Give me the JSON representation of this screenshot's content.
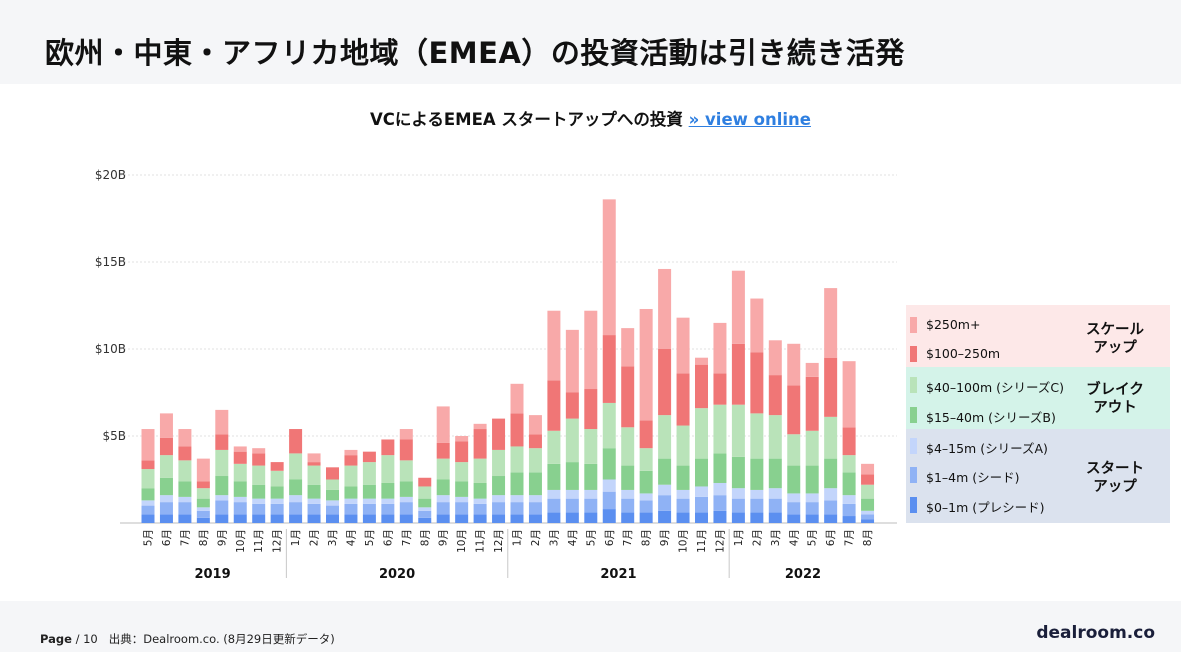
{
  "page": {
    "title": "欧州・中東・アフリカ地域（EMEA）の投資活動は引き続き活発",
    "footer": {
      "page_label": "Page",
      "page_number": "/ 10",
      "source": "出典：Dealroom.co. (8月29日更新データ)",
      "logo": "dealroom.co"
    }
  },
  "chart_data": {
    "type": "bar",
    "title": "VCによるEMEA スタートアップへの投資",
    "title_link": "» view online",
    "stacked": true,
    "ylim": [
      0,
      20
    ],
    "yticks": [
      {
        "value": 5,
        "label": "$5B"
      },
      {
        "value": 10,
        "label": "$10B"
      },
      {
        "value": 15,
        "label": "$15B"
      },
      {
        "value": 20,
        "label": "$20B"
      }
    ],
    "categories": [
      "5月",
      "6月",
      "7月",
      "8月",
      "9月",
      "10月",
      "11月",
      "12月",
      "1月",
      "2月",
      "3月",
      "4月",
      "5月",
      "6月",
      "7月",
      "8月",
      "9月",
      "10月",
      "11月",
      "12月",
      "1月",
      "2月",
      "3月",
      "4月",
      "5月",
      "6月",
      "7月",
      "8月",
      "9月",
      "10月",
      "11月",
      "12月",
      "1月",
      "2月",
      "3月",
      "4月",
      "5月",
      "6月",
      "7月",
      "8月"
    ],
    "years": [
      {
        "label": "2019",
        "from": 0,
        "to": 7
      },
      {
        "label": "2020",
        "from": 8,
        "to": 19
      },
      {
        "label": "2021",
        "from": 20,
        "to": 31
      },
      {
        "label": "2022",
        "from": 32,
        "to": 39
      }
    ],
    "series": [
      {
        "name": "$0–1m (プレシード)",
        "color": "#5b8ff0",
        "values": [
          0.5,
          0.5,
          0.5,
          0.3,
          0.5,
          0.5,
          0.5,
          0.5,
          0.5,
          0.5,
          0.5,
          0.5,
          0.5,
          0.5,
          0.5,
          0.3,
          0.5,
          0.5,
          0.5,
          0.5,
          0.5,
          0.5,
          0.6,
          0.6,
          0.6,
          0.8,
          0.6,
          0.6,
          0.7,
          0.6,
          0.6,
          0.7,
          0.6,
          0.6,
          0.6,
          0.5,
          0.5,
          0.5,
          0.4,
          0.2
        ]
      },
      {
        "name": "$1–4m (シード)",
        "color": "#8fb2f5",
        "values": [
          0.5,
          0.7,
          0.7,
          0.4,
          0.8,
          0.7,
          0.6,
          0.6,
          0.7,
          0.6,
          0.5,
          0.6,
          0.6,
          0.6,
          0.7,
          0.4,
          0.7,
          0.7,
          0.6,
          0.7,
          0.7,
          0.7,
          0.8,
          0.8,
          0.8,
          1.0,
          0.8,
          0.7,
          0.9,
          0.8,
          0.9,
          0.9,
          0.8,
          0.8,
          0.8,
          0.7,
          0.7,
          0.8,
          0.7,
          0.3
        ]
      },
      {
        "name": "$4–15m (シリーズA)",
        "color": "#c3d5fb",
        "values": [
          0.3,
          0.4,
          0.3,
          0.2,
          0.3,
          0.3,
          0.3,
          0.3,
          0.4,
          0.3,
          0.3,
          0.3,
          0.3,
          0.3,
          0.3,
          0.2,
          0.4,
          0.3,
          0.3,
          0.4,
          0.4,
          0.4,
          0.5,
          0.5,
          0.5,
          0.7,
          0.5,
          0.4,
          0.6,
          0.5,
          0.6,
          0.7,
          0.6,
          0.5,
          0.6,
          0.5,
          0.5,
          0.7,
          0.5,
          0.2
        ]
      },
      {
        "name": "$15–40m (シリーズB)",
        "color": "#88d08f",
        "values": [
          0.7,
          1.0,
          0.9,
          0.5,
          1.1,
          0.9,
          0.8,
          0.7,
          0.9,
          0.8,
          0.6,
          0.7,
          0.8,
          0.9,
          0.9,
          0.5,
          0.9,
          0.9,
          0.9,
          1.1,
          1.3,
          1.3,
          1.5,
          1.6,
          1.5,
          1.8,
          1.4,
          1.3,
          1.5,
          1.4,
          1.6,
          1.7,
          1.8,
          1.8,
          1.7,
          1.6,
          1.6,
          1.7,
          1.3,
          0.7
        ]
      },
      {
        "name": "$40–100m (シリーズC)",
        "color": "#b9e3b9",
        "values": [
          1.1,
          1.3,
          1.2,
          0.6,
          1.5,
          1.0,
          1.1,
          0.9,
          1.5,
          1.1,
          0.6,
          1.2,
          1.3,
          1.6,
          1.2,
          0.7,
          1.2,
          1.1,
          1.4,
          1.5,
          1.5,
          1.4,
          1.9,
          2.5,
          2.0,
          2.6,
          2.2,
          1.3,
          2.5,
          2.3,
          2.9,
          2.8,
          3.0,
          2.6,
          2.5,
          1.8,
          2.0,
          2.4,
          1.0,
          0.8
        ]
      },
      {
        "name": "$100–250m",
        "color": "#f07676",
        "values": [
          0.5,
          1.0,
          0.8,
          0.4,
          0.9,
          0.7,
          0.7,
          0.5,
          1.4,
          0.2,
          0.7,
          0.6,
          0.6,
          0.9,
          1.2,
          0.5,
          0.9,
          1.2,
          1.7,
          1.8,
          1.9,
          0.8,
          2.9,
          1.5,
          2.3,
          3.9,
          3.5,
          1.6,
          3.8,
          3.0,
          2.5,
          1.8,
          3.5,
          3.5,
          2.3,
          2.8,
          3.1,
          3.4,
          1.6,
          0.6
        ]
      },
      {
        "name": "$250m+",
        "color": "#f8a9a9",
        "values": [
          1.8,
          1.4,
          1.0,
          1.3,
          1.4,
          0.3,
          0.3,
          0.0,
          0.0,
          0.5,
          0.0,
          0.3,
          0.0,
          0.0,
          0.6,
          0.0,
          2.1,
          0.3,
          0.3,
          0.0,
          1.7,
          1.1,
          4.0,
          3.6,
          4.5,
          7.8,
          2.2,
          6.4,
          4.6,
          3.2,
          0.4,
          2.9,
          4.2,
          3.1,
          2.0,
          2.4,
          0.8,
          4.0,
          3.8,
          0.6
        ]
      }
    ],
    "legend": [
      {
        "group": "スケール\nアップ",
        "items": [
          "$250m+",
          "$100–250m"
        ],
        "band_color": "#fde8e8"
      },
      {
        "group": "ブレイク\nアウト",
        "items": [
          "$40–100m (シリーズC)",
          "$15–40m (シリーズB)"
        ],
        "band_color": "#d4f3e9"
      },
      {
        "group": "スタート\nアップ",
        "items": [
          "$4–15m (シリーズA)",
          "$1–4m (シード)",
          "$0–1m (プレシード)"
        ],
        "band_color": "#dbe2ee"
      }
    ]
  }
}
